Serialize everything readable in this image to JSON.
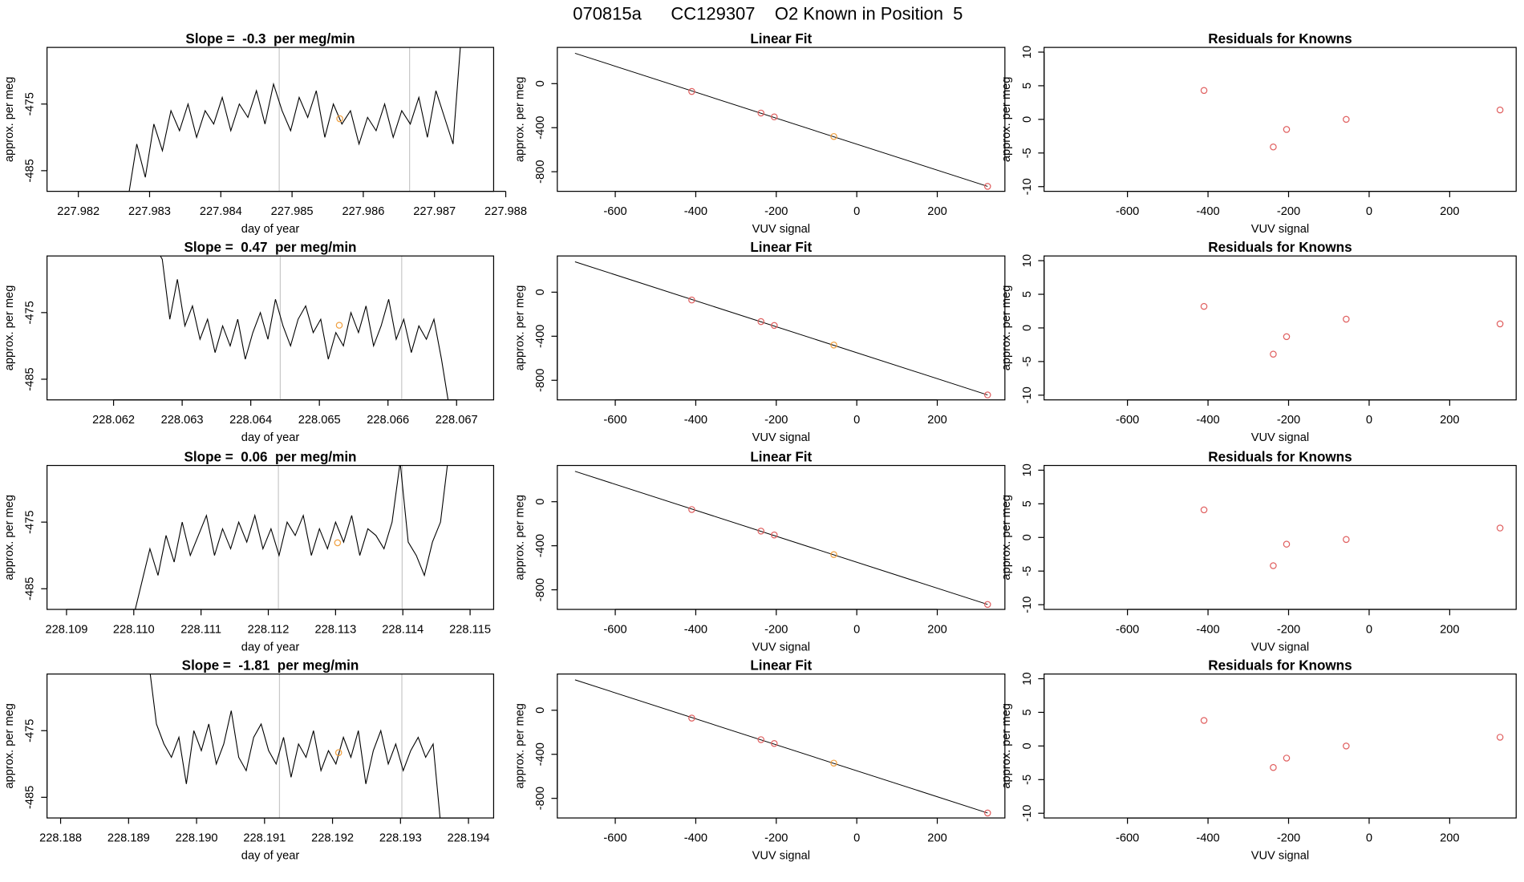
{
  "title": "070815a      CC129307    O2 Known in Position  5",
  "chart_data": [
    {
      "type": "line",
      "title": "Slope =  -0.3  per meg/min",
      "xlabel": "day of year",
      "ylabel": "approx. per meg",
      "color": "#000000",
      "x": [
        227.9827,
        227.98282,
        227.98294,
        227.98306,
        227.98318,
        227.9833,
        227.98342,
        227.98354,
        227.98366,
        227.98378,
        227.9839,
        227.98402,
        227.98414,
        227.98426,
        227.98438,
        227.9845,
        227.98462,
        227.98474,
        227.98486,
        227.98498,
        227.9851,
        227.98522,
        227.98534,
        227.98546,
        227.98558,
        227.9857,
        227.98582,
        227.98594,
        227.98606,
        227.98618,
        227.9863,
        227.98642,
        227.98654,
        227.98666,
        227.98678,
        227.9869,
        227.98702,
        227.98714,
        227.98726,
        227.98738
      ],
      "values": [
        -489,
        -481,
        -486,
        -478,
        -482,
        -476,
        -479,
        -475,
        -480,
        -476,
        -478,
        -474,
        -479,
        -475,
        -477,
        -473,
        -478,
        -472,
        -476,
        -479,
        -474,
        -477,
        -473,
        -480,
        -475,
        -478,
        -476,
        -481,
        -477,
        -479,
        -475,
        -480,
        -476,
        -478,
        -474,
        -480,
        -473,
        -477,
        -481,
        -464
      ],
      "vlines": {
        "x": [
          227.98482,
          227.98665
        ],
        "color": "#c8c8c8"
      },
      "marker": {
        "x": 227.98567,
        "y": -477.2,
        "color": "#f0a040"
      },
      "xlim": [
        227.98156,
        227.98783
      ],
      "ylim": [
        -488.1,
        -466.5
      ],
      "xticks": [
        227.982,
        227.983,
        227.984,
        227.985,
        227.986,
        227.987,
        227.988
      ],
      "yticks": [
        -475,
        -485
      ]
    },
    {
      "type": "scatter",
      "title": "Linear Fit",
      "xlabel": "VUV signal",
      "ylabel": "approx. per meg",
      "x": [
        -410,
        -238,
        -205,
        -57,
        325
      ],
      "values": [
        -71,
        -267,
        -302,
        -480,
        -933
      ],
      "point_colors": [
        "#e06060",
        "#e06060",
        "#e06060",
        "#f0a040",
        "#e06060"
      ],
      "fit_line": {
        "x": [
          -700,
          325
        ],
        "y": [
          276,
          -933
        ],
        "color": "#000000"
      },
      "xlim": [
        -744,
        368
      ],
      "ylim": [
        -978,
        329
      ],
      "xticks": [
        -600,
        -400,
        -200,
        0,
        200
      ],
      "yticks": [
        0,
        -400,
        -800
      ]
    },
    {
      "type": "scatter",
      "title": "Residuals for Knowns",
      "xlabel": "VUV signal",
      "ylabel": "approx. per meg",
      "color": "#e06060",
      "x": [
        -410,
        -238,
        -205,
        -57,
        325
      ],
      "values": [
        4.3,
        -4.1,
        -1.5,
        0.0,
        1.4
      ],
      "xlim": [
        -807,
        365
      ],
      "ylim": [
        -10.7,
        10.7
      ],
      "xticks": [
        -600,
        -400,
        -200,
        0,
        200
      ],
      "yticks": [
        -10,
        -5,
        0,
        5,
        10
      ]
    },
    {
      "type": "line",
      "title": "Slope =  0.47  per meg/min",
      "xlabel": "day of year",
      "ylabel": "approx. per meg",
      "color": "#000000",
      "x": [
        228.0626,
        228.06271,
        228.06282,
        228.06293,
        228.06304,
        228.06315,
        228.06326,
        228.06337,
        228.06348,
        228.06359,
        228.0637,
        228.06381,
        228.06392,
        228.06403,
        228.06414,
        228.06425,
        228.06436,
        228.06447,
        228.06458,
        228.06469,
        228.0648,
        228.06491,
        228.06502,
        228.06513,
        228.06524,
        228.06535,
        228.06546,
        228.06557,
        228.06568,
        228.06579,
        228.0659,
        228.06601,
        228.06612,
        228.06623,
        228.06634,
        228.06645,
        228.06656,
        228.06667,
        228.06678,
        228.06689
      ],
      "values": [
        -465,
        -467,
        -476,
        -470,
        -477,
        -474,
        -479,
        -476,
        -481,
        -477,
        -480,
        -476,
        -482,
        -478,
        -475,
        -479,
        -473,
        -477,
        -480,
        -476,
        -474,
        -478,
        -476,
        -482,
        -478,
        -480,
        -475,
        -478,
        -474,
        -480,
        -477,
        -473,
        -479,
        -476,
        -481,
        -477,
        -479,
        -476,
        -482,
        -489
      ],
      "vlines": {
        "x": [
          228.06443,
          228.0662
        ],
        "color": "#c8c8c8"
      },
      "marker": {
        "x": 228.06529,
        "y": -476.9,
        "color": "#f0a040"
      },
      "xlim": [
        228.06103,
        228.06754
      ],
      "ylim": [
        -488.1,
        -466.5
      ],
      "xticks": [
        228.062,
        228.063,
        228.064,
        228.065,
        228.066,
        228.067
      ],
      "yticks": [
        -475,
        -485
      ]
    },
    {
      "type": "scatter",
      "title": "Linear Fit",
      "xlabel": "VUV signal",
      "ylabel": "approx. per meg",
      "x": [
        -410,
        -238,
        -205,
        -57,
        325
      ],
      "values": [
        -71,
        -267,
        -302,
        -480,
        -933
      ],
      "point_colors": [
        "#e06060",
        "#e06060",
        "#e06060",
        "#f0a040",
        "#e06060"
      ],
      "fit_line": {
        "x": [
          -700,
          325
        ],
        "y": [
          276,
          -933
        ],
        "color": "#000000"
      },
      "xlim": [
        -744,
        368
      ],
      "ylim": [
        -978,
        329
      ],
      "xticks": [
        -600,
        -400,
        -200,
        0,
        200
      ],
      "yticks": [
        0,
        -400,
        -800
      ]
    },
    {
      "type": "scatter",
      "title": "Residuals for Knowns",
      "xlabel": "VUV signal",
      "ylabel": "approx. per meg",
      "color": "#e06060",
      "x": [
        -410,
        -238,
        -205,
        -57,
        325
      ],
      "values": [
        3.2,
        -3.9,
        -1.3,
        1.3,
        0.6
      ],
      "xlim": [
        -807,
        365
      ],
      "ylim": [
        -10.7,
        10.7
      ],
      "xticks": [
        -600,
        -400,
        -200,
        0,
        200
      ],
      "yticks": [
        -10,
        -5,
        0,
        5,
        10
      ]
    },
    {
      "type": "line",
      "title": "Slope =  0.06  per meg/min",
      "xlabel": "day of year",
      "ylabel": "approx. per meg",
      "color": "#000000",
      "x": [
        228.11,
        228.11012,
        228.11024,
        228.11036,
        228.11048,
        228.1106,
        228.11072,
        228.11084,
        228.11096,
        228.11108,
        228.1112,
        228.11132,
        228.11144,
        228.11156,
        228.11168,
        228.1118,
        228.11192,
        228.11204,
        228.11216,
        228.11228,
        228.1124,
        228.11252,
        228.11264,
        228.11276,
        228.11288,
        228.113,
        228.11312,
        228.11324,
        228.11336,
        228.11348,
        228.1136,
        228.11372,
        228.11384,
        228.11396,
        228.11408,
        228.1142,
        228.11432,
        228.11444,
        228.11456,
        228.11468
      ],
      "values": [
        -489,
        -484,
        -479,
        -483,
        -477,
        -481,
        -475,
        -480,
        -477,
        -474,
        -480,
        -476,
        -479,
        -475,
        -478,
        -474,
        -479,
        -476,
        -480,
        -475,
        -477,
        -474,
        -480,
        -476,
        -479,
        -475,
        -478,
        -474,
        -480,
        -476,
        -477,
        -479,
        -475,
        -466,
        -478,
        -480,
        -483,
        -478,
        -475,
        -465
      ],
      "vlines": {
        "x": [
          228.11215,
          228.11399
        ],
        "color": "#c8c8c8"
      },
      "marker": {
        "x": 228.11303,
        "y": -478.1,
        "color": "#f0a040"
      },
      "xlim": [
        228.10871,
        228.11535
      ],
      "ylim": [
        -488.1,
        -466.5
      ],
      "xticks": [
        228.109,
        {
          "value": 228.11,
          "label": "228.110"
        },
        228.111,
        228.112,
        228.113,
        228.114,
        228.115
      ],
      "yticks": [
        -475,
        -485
      ]
    },
    {
      "type": "scatter",
      "title": "Linear Fit",
      "xlabel": "VUV signal",
      "ylabel": "approx. per meg",
      "x": [
        -410,
        -238,
        -205,
        -57,
        325
      ],
      "values": [
        -71,
        -267,
        -302,
        -480,
        -933
      ],
      "point_colors": [
        "#e06060",
        "#e06060",
        "#e06060",
        "#f0a040",
        "#e06060"
      ],
      "fit_line": {
        "x": [
          -700,
          325
        ],
        "y": [
          276,
          -933
        ],
        "color": "#000000"
      },
      "xlim": [
        -744,
        368
      ],
      "ylim": [
        -978,
        329
      ],
      "xticks": [
        -600,
        -400,
        -200,
        0,
        200
      ],
      "yticks": [
        0,
        -400,
        -800
      ]
    },
    {
      "type": "scatter",
      "title": "Residuals for Knowns",
      "xlabel": "VUV signal",
      "ylabel": "approx. per meg",
      "color": "#e06060",
      "x": [
        -410,
        -238,
        -205,
        -57,
        325
      ],
      "values": [
        4.1,
        -4.2,
        -1.0,
        -0.3,
        1.4
      ],
      "xlim": [
        -807,
        365
      ],
      "ylim": [
        -10.7,
        10.7
      ],
      "xticks": [
        -600,
        -400,
        -200,
        0,
        200
      ],
      "yticks": [
        -10,
        -5,
        0,
        5,
        10
      ]
    },
    {
      "type": "line",
      "title": "Slope =  -1.81  per meg/min",
      "xlabel": "day of year",
      "ylabel": "approx. per meg",
      "color": "#000000",
      "x": [
        228.1893,
        228.18941,
        228.18952,
        228.18963,
        228.18974,
        228.18985,
        228.18996,
        228.19007,
        228.19018,
        228.19029,
        228.1904,
        228.19051,
        228.19062,
        228.19073,
        228.19084,
        228.19095,
        228.19106,
        228.19117,
        228.19128,
        228.19139,
        228.1915,
        228.19161,
        228.19172,
        228.19183,
        228.19194,
        228.19205,
        228.19216,
        228.19227,
        228.19238,
        228.19249,
        228.1926,
        228.19271,
        228.19282,
        228.19293,
        228.19304,
        228.19315,
        228.19326,
        228.19337,
        228.19348,
        228.19359
      ],
      "values": [
        -465,
        -474,
        -477,
        -479,
        -476,
        -483,
        -475,
        -478,
        -474,
        -480,
        -477,
        -472,
        -479,
        -481,
        -476,
        -474,
        -478,
        -480,
        -476,
        -482,
        -477,
        -479,
        -475,
        -481,
        -478,
        -480,
        -476,
        -479,
        -475,
        -483,
        -478,
        -475,
        -480,
        -477,
        -481,
        -478,
        -476,
        -479,
        -477,
        -489
      ],
      "vlines": {
        "x": [
          228.19122,
          228.19302
        ],
        "color": "#c8c8c8"
      },
      "marker": {
        "x": 228.19209,
        "y": -478.3,
        "color": "#f0a040"
      },
      "xlim": [
        228.1878,
        228.19437
      ],
      "ylim": [
        -488.1,
        -466.5
      ],
      "xticks": [
        228.188,
        228.189,
        {
          "value": 228.19,
          "label": "228.190"
        },
        228.191,
        228.192,
        228.193,
        228.194
      ],
      "yticks": [
        -475,
        -485
      ]
    },
    {
      "type": "scatter",
      "title": "Linear Fit",
      "xlabel": "VUV signal",
      "ylabel": "approx. per meg",
      "x": [
        -410,
        -238,
        -205,
        -57,
        325
      ],
      "values": [
        -71,
        -267,
        -302,
        -480,
        -933
      ],
      "point_colors": [
        "#e06060",
        "#e06060",
        "#e06060",
        "#f0a040",
        "#e06060"
      ],
      "fit_line": {
        "x": [
          -700,
          325
        ],
        "y": [
          276,
          -933
        ],
        "color": "#000000"
      },
      "xlim": [
        -744,
        368
      ],
      "ylim": [
        -978,
        329
      ],
      "xticks": [
        -600,
        -400,
        -200,
        0,
        200
      ],
      "yticks": [
        0,
        -400,
        -800
      ]
    },
    {
      "type": "scatter",
      "title": "Residuals for Knowns",
      "xlabel": "VUV signal",
      "ylabel": "approx. per meg",
      "color": "#e06060",
      "x": [
        -410,
        -238,
        -205,
        -57,
        325
      ],
      "values": [
        3.8,
        -3.2,
        -1.8,
        0.0,
        1.3
      ],
      "xlim": [
        -807,
        365
      ],
      "ylim": [
        -10.7,
        10.7
      ],
      "xticks": [
        -600,
        -400,
        -200,
        0,
        200
      ],
      "yticks": [
        -10,
        -5,
        0,
        5,
        10
      ]
    }
  ]
}
